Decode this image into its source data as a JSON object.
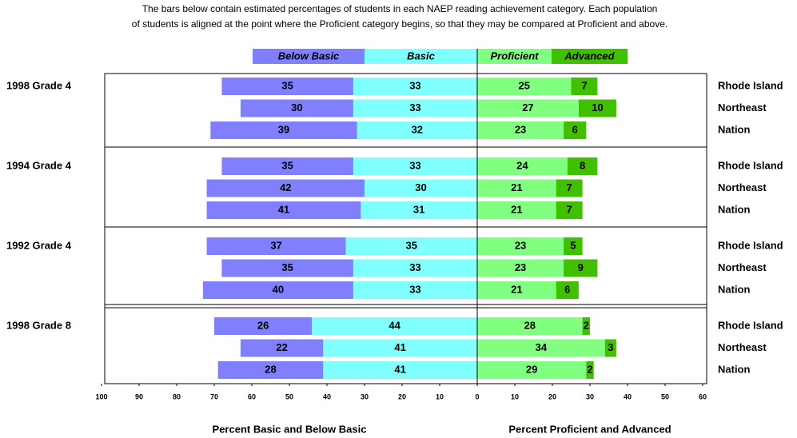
{
  "chart_data": {
    "type": "diverging_bar",
    "title": [
      "The bars below contain estimated percentages of students in each NAEP reading achievement category.  Each population",
      "of students is aligned at the point where the Proficient category begins, so that they may be compared at Proficient and above."
    ],
    "group_labels": [
      "1998 Grade 4",
      "1994 Grade 4",
      "1992 Grade 4",
      "1998 Grade 8"
    ],
    "categories": [
      "Rhode Island",
      "Northeast",
      "Nation",
      "Rhode Island",
      "Northeast",
      "Nation",
      "Rhode Island",
      "Northeast",
      "Nation",
      "Rhode Island",
      "Northeast",
      "Nation"
    ],
    "series": [
      {
        "name": "Below Basic",
        "color": "#8080ff",
        "side": "left",
        "values": [
          35,
          30,
          39,
          35,
          42,
          41,
          37,
          35,
          40,
          26,
          22,
          28
        ]
      },
      {
        "name": "Basic",
        "color": "#80ffff",
        "side": "left",
        "values": [
          33,
          33,
          32,
          33,
          30,
          31,
          35,
          33,
          33,
          44,
          41,
          41
        ]
      },
      {
        "name": "Proficient",
        "color": "#80ff80",
        "side": "right",
        "values": [
          25,
          27,
          23,
          24,
          21,
          21,
          23,
          23,
          21,
          28,
          34,
          29
        ]
      },
      {
        "name": "Advanced",
        "color": "#40c000",
        "side": "right",
        "values": [
          7,
          10,
          6,
          8,
          7,
          7,
          5,
          9,
          6,
          2,
          3,
          2
        ]
      }
    ],
    "xlim": [
      -100,
      60
    ],
    "xticks": [
      {
        "value": -100,
        "label": "100"
      },
      {
        "value": -90,
        "label": "90"
      },
      {
        "value": -80,
        "label": "80"
      },
      {
        "value": -70,
        "label": "70"
      },
      {
        "value": -60,
        "label": "60"
      },
      {
        "value": -50,
        "label": "50"
      },
      {
        "value": -40,
        "label": "40"
      },
      {
        "value": -30,
        "label": "30"
      },
      {
        "value": -20,
        "label": "20"
      },
      {
        "value": -10,
        "label": "10"
      },
      0,
      10,
      20,
      30,
      40,
      50,
      60
    ],
    "xlabel_left": "Percent Basic and Below Basic",
    "xlabel_right": "Percent Proficient and Advanced"
  }
}
